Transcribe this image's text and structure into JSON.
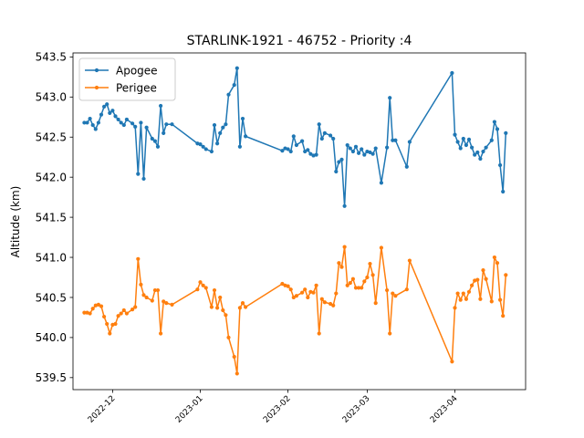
{
  "chart_data": {
    "type": "line",
    "title": "STARLINK-1921 - 46752 - Priority :4",
    "xlabel": "",
    "ylabel": "Altitude (km)",
    "xlim": [
      "2022-11-17",
      "2023-04-26"
    ],
    "ylim": [
      539.35,
      543.55
    ],
    "y_ticks": [
      539.5,
      540.0,
      540.5,
      541.0,
      541.5,
      542.0,
      542.5,
      543.0,
      543.5
    ],
    "y_tick_labels": [
      "539.5",
      "540.0",
      "540.5",
      "541.0",
      "541.5",
      "542.0",
      "542.5",
      "543.0",
      "543.5"
    ],
    "x_ticks": [
      "2022-12-01",
      "2023-01-01",
      "2023-02-01",
      "2023-03-01",
      "2023-04-01"
    ],
    "x_tick_labels": [
      "2022-12",
      "2023-01",
      "2023-02",
      "2023-03",
      "2023-04"
    ],
    "grid": false,
    "legend": "top-left",
    "series": [
      {
        "name": "Apogee",
        "color": "#1f77b4",
        "points": [
          [
            "2022-11-21",
            542.68
          ],
          [
            "2022-11-22",
            542.68
          ],
          [
            "2022-11-23",
            542.73
          ],
          [
            "2022-11-24",
            542.65
          ],
          [
            "2022-11-25",
            542.6
          ],
          [
            "2022-11-26",
            542.68
          ],
          [
            "2022-11-27",
            542.78
          ],
          [
            "2022-11-28",
            542.88
          ],
          [
            "2022-11-29",
            542.91
          ],
          [
            "2022-11-30",
            542.8
          ],
          [
            "2022-12-01",
            542.83
          ],
          [
            "2022-12-02",
            542.76
          ],
          [
            "2022-12-03",
            542.72
          ],
          [
            "2022-12-04",
            542.68
          ],
          [
            "2022-12-05",
            542.65
          ],
          [
            "2022-12-06",
            542.72
          ],
          [
            "2022-12-08",
            542.67
          ],
          [
            "2022-12-09",
            542.63
          ],
          [
            "2022-12-10",
            542.04
          ],
          [
            "2022-12-11",
            542.68
          ],
          [
            "2022-12-12",
            541.98
          ],
          [
            "2022-12-13",
            542.62
          ],
          [
            "2022-12-15",
            542.48
          ],
          [
            "2022-12-16",
            542.45
          ],
          [
            "2022-12-17",
            542.38
          ],
          [
            "2022-12-18",
            542.89
          ],
          [
            "2022-12-19",
            542.55
          ],
          [
            "2022-12-20",
            542.66
          ],
          [
            "2022-12-22",
            542.66
          ],
          [
            "2022-12-31",
            542.42
          ],
          [
            "2023-01-01",
            542.41
          ],
          [
            "2023-01-02",
            542.38
          ],
          [
            "2023-01-03",
            542.35
          ],
          [
            "2023-01-05",
            542.32
          ],
          [
            "2023-01-06",
            542.65
          ],
          [
            "2023-01-07",
            542.42
          ],
          [
            "2023-01-08",
            542.55
          ],
          [
            "2023-01-09",
            542.62
          ],
          [
            "2023-01-10",
            542.66
          ],
          [
            "2023-01-11",
            543.03
          ],
          [
            "2023-01-13",
            543.15
          ],
          [
            "2023-01-14",
            543.36
          ],
          [
            "2023-01-15",
            542.38
          ],
          [
            "2023-01-16",
            542.73
          ],
          [
            "2023-01-17",
            542.51
          ],
          [
            "2023-01-30",
            542.33
          ],
          [
            "2023-01-31",
            542.36
          ],
          [
            "2023-02-01",
            542.35
          ],
          [
            "2023-02-02",
            542.32
          ],
          [
            "2023-02-03",
            542.51
          ],
          [
            "2023-02-04",
            542.4
          ],
          [
            "2023-02-06",
            542.45
          ],
          [
            "2023-02-07",
            542.32
          ],
          [
            "2023-02-08",
            542.34
          ],
          [
            "2023-02-09",
            542.29
          ],
          [
            "2023-02-10",
            542.27
          ],
          [
            "2023-02-11",
            542.28
          ],
          [
            "2023-02-12",
            542.66
          ],
          [
            "2023-02-13",
            542.48
          ],
          [
            "2023-02-14",
            542.55
          ],
          [
            "2023-02-16",
            542.52
          ],
          [
            "2023-02-17",
            542.48
          ],
          [
            "2023-02-18",
            542.07
          ],
          [
            "2023-02-19",
            542.19
          ],
          [
            "2023-02-20",
            542.22
          ],
          [
            "2023-02-21",
            541.64
          ],
          [
            "2023-02-22",
            542.4
          ],
          [
            "2023-02-23",
            542.36
          ],
          [
            "2023-02-24",
            542.32
          ],
          [
            "2023-02-25",
            542.38
          ],
          [
            "2023-02-26",
            542.3
          ],
          [
            "2023-02-27",
            542.35
          ],
          [
            "2023-02-28",
            542.28
          ],
          [
            "2023-03-01",
            542.32
          ],
          [
            "2023-03-02",
            542.31
          ],
          [
            "2023-03-03",
            542.29
          ],
          [
            "2023-03-04",
            542.36
          ],
          [
            "2023-03-06",
            541.93
          ],
          [
            "2023-03-08",
            542.37
          ],
          [
            "2023-03-09",
            542.99
          ],
          [
            "2023-03-10",
            542.46
          ],
          [
            "2023-03-11",
            542.46
          ],
          [
            "2023-03-15",
            542.13
          ],
          [
            "2023-03-16",
            542.44
          ],
          [
            "2023-03-31",
            543.3
          ],
          [
            "2023-04-01",
            542.53
          ],
          [
            "2023-04-02",
            542.44
          ],
          [
            "2023-04-03",
            542.36
          ],
          [
            "2023-04-04",
            542.48
          ],
          [
            "2023-04-05",
            542.4
          ],
          [
            "2023-04-06",
            542.47
          ],
          [
            "2023-04-07",
            542.37
          ],
          [
            "2023-04-08",
            542.28
          ],
          [
            "2023-04-09",
            542.31
          ],
          [
            "2023-04-10",
            542.23
          ],
          [
            "2023-04-11",
            542.32
          ],
          [
            "2023-04-12",
            542.37
          ],
          [
            "2023-04-14",
            542.46
          ],
          [
            "2023-04-15",
            542.69
          ],
          [
            "2023-04-16",
            542.6
          ],
          [
            "2023-04-17",
            542.15
          ],
          [
            "2023-04-18",
            541.82
          ],
          [
            "2023-04-19",
            542.55
          ]
        ]
      },
      {
        "name": "Perigee",
        "color": "#ff7f0e",
        "points": [
          [
            "2022-11-21",
            540.31
          ],
          [
            "2022-11-22",
            540.31
          ],
          [
            "2022-11-23",
            540.3
          ],
          [
            "2022-11-24",
            540.36
          ],
          [
            "2022-11-25",
            540.4
          ],
          [
            "2022-11-26",
            540.41
          ],
          [
            "2022-11-27",
            540.39
          ],
          [
            "2022-11-28",
            540.26
          ],
          [
            "2022-11-29",
            540.17
          ],
          [
            "2022-11-30",
            540.05
          ],
          [
            "2022-12-01",
            540.16
          ],
          [
            "2022-12-02",
            540.17
          ],
          [
            "2022-12-03",
            540.27
          ],
          [
            "2022-12-04",
            540.3
          ],
          [
            "2022-12-05",
            540.34
          ],
          [
            "2022-12-06",
            540.3
          ],
          [
            "2022-12-08",
            540.35
          ],
          [
            "2022-12-09",
            540.38
          ],
          [
            "2022-12-10",
            540.98
          ],
          [
            "2022-12-11",
            540.66
          ],
          [
            "2022-12-12",
            540.53
          ],
          [
            "2022-12-13",
            540.5
          ],
          [
            "2022-12-15",
            540.46
          ],
          [
            "2022-12-16",
            540.59
          ],
          [
            "2022-12-17",
            540.59
          ],
          [
            "2022-12-18",
            540.05
          ],
          [
            "2022-12-19",
            540.45
          ],
          [
            "2022-12-20",
            540.43
          ],
          [
            "2022-12-22",
            540.41
          ],
          [
            "2022-12-31",
            540.6
          ],
          [
            "2023-01-01",
            540.69
          ],
          [
            "2023-01-02",
            540.65
          ],
          [
            "2023-01-03",
            540.62
          ],
          [
            "2023-01-05",
            540.38
          ],
          [
            "2023-01-06",
            540.59
          ],
          [
            "2023-01-07",
            540.37
          ],
          [
            "2023-01-08",
            540.5
          ],
          [
            "2023-01-09",
            540.34
          ],
          [
            "2023-01-10",
            540.28
          ],
          [
            "2023-01-11",
            540.0
          ],
          [
            "2023-01-13",
            539.76
          ],
          [
            "2023-01-14",
            539.55
          ],
          [
            "2023-01-15",
            540.37
          ],
          [
            "2023-01-16",
            540.43
          ],
          [
            "2023-01-17",
            540.38
          ],
          [
            "2023-01-30",
            540.67
          ],
          [
            "2023-01-31",
            540.65
          ],
          [
            "2023-02-01",
            540.64
          ],
          [
            "2023-02-02",
            540.6
          ],
          [
            "2023-02-03",
            540.5
          ],
          [
            "2023-02-04",
            540.52
          ],
          [
            "2023-02-06",
            540.56
          ],
          [
            "2023-02-07",
            540.6
          ],
          [
            "2023-02-08",
            540.5
          ],
          [
            "2023-02-09",
            540.57
          ],
          [
            "2023-02-10",
            540.56
          ],
          [
            "2023-02-11",
            540.65
          ],
          [
            "2023-02-12",
            540.05
          ],
          [
            "2023-02-13",
            540.48
          ],
          [
            "2023-02-14",
            540.44
          ],
          [
            "2023-02-16",
            540.42
          ],
          [
            "2023-02-17",
            540.4
          ],
          [
            "2023-02-18",
            540.55
          ],
          [
            "2023-02-19",
            540.93
          ],
          [
            "2023-02-20",
            540.88
          ],
          [
            "2023-02-21",
            541.13
          ],
          [
            "2023-02-22",
            540.65
          ],
          [
            "2023-02-23",
            540.68
          ],
          [
            "2023-02-24",
            540.73
          ],
          [
            "2023-02-25",
            540.62
          ],
          [
            "2023-02-26",
            540.62
          ],
          [
            "2023-02-27",
            540.62
          ],
          [
            "2023-02-28",
            540.7
          ],
          [
            "2023-03-01",
            540.75
          ],
          [
            "2023-03-02",
            540.92
          ],
          [
            "2023-03-03",
            540.78
          ],
          [
            "2023-03-04",
            540.43
          ],
          [
            "2023-03-06",
            541.12
          ],
          [
            "2023-03-08",
            540.59
          ],
          [
            "2023-03-09",
            540.05
          ],
          [
            "2023-03-10",
            540.55
          ],
          [
            "2023-03-11",
            540.52
          ],
          [
            "2023-03-15",
            540.6
          ],
          [
            "2023-03-16",
            540.96
          ],
          [
            "2023-03-31",
            539.7
          ],
          [
            "2023-04-01",
            540.37
          ],
          [
            "2023-04-02",
            540.55
          ],
          [
            "2023-04-03",
            540.47
          ],
          [
            "2023-04-04",
            540.55
          ],
          [
            "2023-04-05",
            540.48
          ],
          [
            "2023-04-06",
            540.57
          ],
          [
            "2023-04-07",
            540.65
          ],
          [
            "2023-04-08",
            540.71
          ],
          [
            "2023-04-09",
            540.72
          ],
          [
            "2023-04-10",
            540.48
          ],
          [
            "2023-04-11",
            540.84
          ],
          [
            "2023-04-12",
            540.73
          ],
          [
            "2023-04-14",
            540.45
          ],
          [
            "2023-04-15",
            541.0
          ],
          [
            "2023-04-16",
            540.93
          ],
          [
            "2023-04-17",
            540.47
          ],
          [
            "2023-04-18",
            540.27
          ],
          [
            "2023-04-19",
            540.78
          ]
        ]
      }
    ]
  }
}
